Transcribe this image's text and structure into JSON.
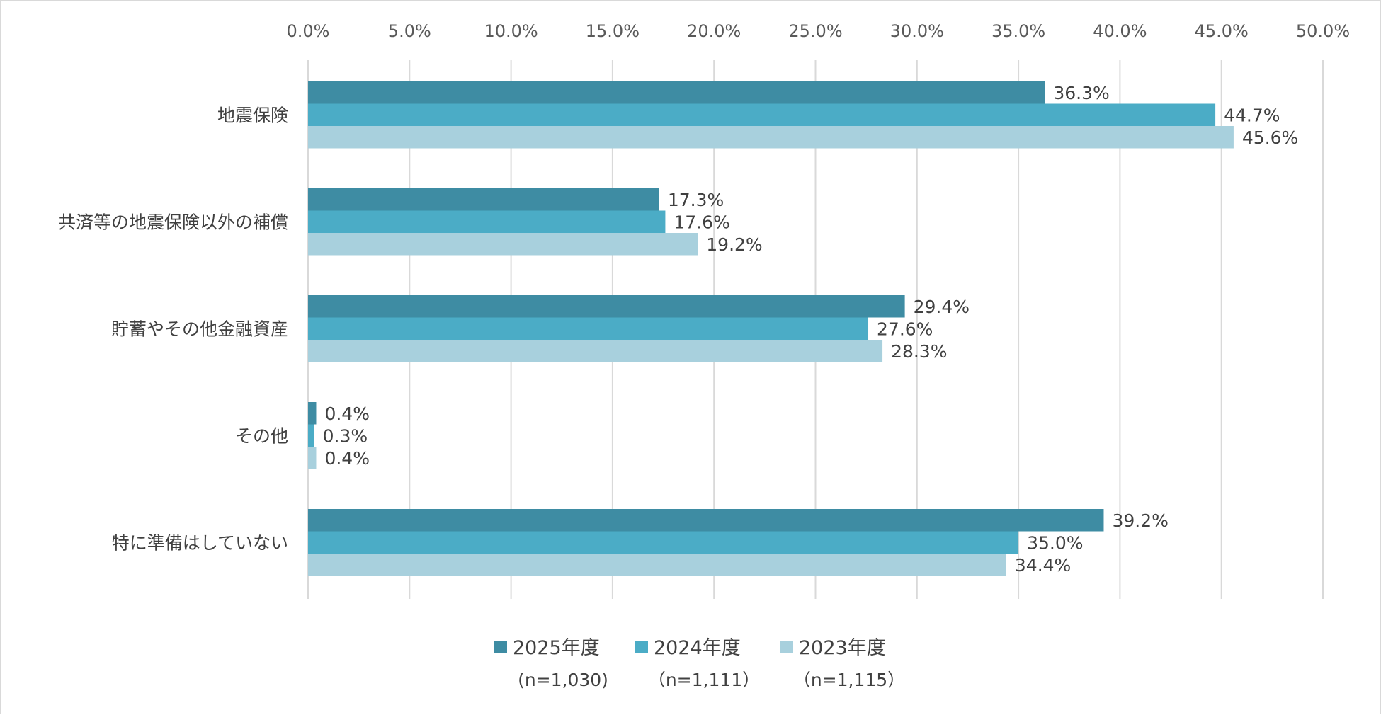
{
  "chart_data": {
    "type": "bar",
    "orientation": "horizontal",
    "title": "",
    "xlabel": "",
    "ylabel": "",
    "xlim": [
      0,
      50
    ],
    "tick_values": [
      0,
      5,
      10,
      15,
      20,
      25,
      30,
      35,
      40,
      45,
      50
    ],
    "tick_labels": [
      "0.0%",
      "5.0%",
      "10.0%",
      "15.0%",
      "20.0%",
      "25.0%",
      "30.0%",
      "35.0%",
      "40.0%",
      "45.0%",
      "50.0%"
    ],
    "grid": true,
    "legend_position": "bottom",
    "categories": [
      "地震保険",
      "共済等の地震保険以外の補償",
      "貯蓄やその他金融資産",
      "その他",
      "特に準備はしていない"
    ],
    "series": [
      {
        "name": "2025年度",
        "sub": "(n=1,030)",
        "color": "#3e8ca3",
        "values": [
          36.3,
          17.3,
          29.4,
          0.4,
          39.2
        ],
        "labels": [
          "36.3%",
          "17.3%",
          "29.4%",
          "0.4%",
          "39.2%"
        ]
      },
      {
        "name": "2024年度",
        "sub": "（n=1,111）",
        "color": "#4bacc6",
        "values": [
          44.7,
          17.6,
          27.6,
          0.3,
          35.0
        ],
        "labels": [
          "44.7%",
          "17.6%",
          "27.6%",
          "0.3%",
          "35.0%"
        ]
      },
      {
        "name": "2023年度",
        "sub": "（n=1,115）",
        "color": "#a8d0dd",
        "values": [
          45.6,
          19.2,
          28.3,
          0.4,
          34.4
        ],
        "labels": [
          "45.6%",
          "19.2%",
          "28.3%",
          "0.4%",
          "34.4%"
        ]
      }
    ]
  }
}
